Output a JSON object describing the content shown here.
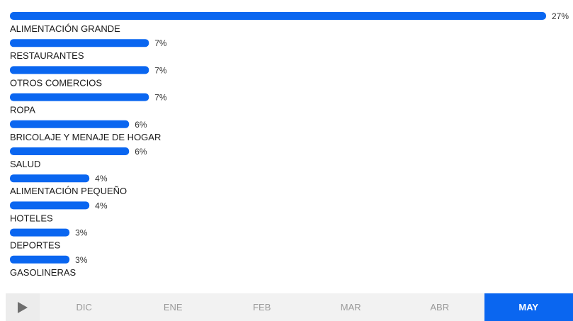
{
  "colors": {
    "bar": "#0a66f0",
    "active_month": "#0a66f0",
    "inactive_month_text": "#9a9a9a"
  },
  "chart_data": {
    "type": "bar",
    "orientation": "horizontal",
    "categories": [
      "ALIMENTACIÓN GRANDE",
      "RESTAURANTES",
      "OTROS COMERCIOS",
      "ROPA",
      "BRICOLAJE Y MENAJE DE HOGAR",
      "SALUD",
      "ALIMENTACIÓN PEQUEÑO",
      "HOTELES",
      "DEPORTES",
      "GASOLINERAS"
    ],
    "values": [
      27,
      7,
      7,
      7,
      6,
      6,
      4,
      4,
      3,
      3
    ],
    "value_labels": [
      "27%",
      "7%",
      "7%",
      "7%",
      "6%",
      "6%",
      "4%",
      "4%",
      "3%",
      "3%"
    ],
    "title": "",
    "xlabel": "",
    "ylabel": "",
    "grid": false,
    "legend": "none"
  },
  "timeline": {
    "play_icon": "play-icon",
    "months": [
      "DIC",
      "ENE",
      "FEB",
      "MAR",
      "ABR",
      "MAY"
    ],
    "active_month": "MAY"
  }
}
